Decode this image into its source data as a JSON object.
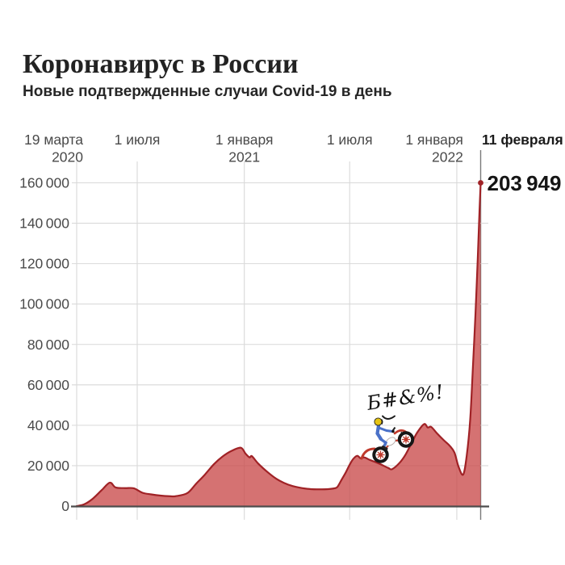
{
  "header": {
    "title": "Коронавирус в России",
    "subtitle": "Новые подтвержденные случаи Covid-19 в день"
  },
  "chart_data": {
    "type": "area",
    "title": "Коронавирус в России",
    "subtitle": "Новые подтвержденные случаи Covid-19 в день",
    "grid": true,
    "x_axis": {
      "start_date": "19.03.2020",
      "end_date": "11.02.2022",
      "ticks": [
        {
          "date": "19.03.2020",
          "lines": [
            "19 марта",
            "2020"
          ],
          "align": "end",
          "bold": false,
          "end_marker": false
        },
        {
          "date": "01.07.2020",
          "lines": [
            "1 июля"
          ],
          "align": "middle",
          "bold": false,
          "end_marker": false
        },
        {
          "date": "01.01.2021",
          "lines": [
            "1 января",
            "2021"
          ],
          "align": "middle",
          "bold": false,
          "end_marker": false
        },
        {
          "date": "01.07.2021",
          "lines": [
            "1 июля"
          ],
          "align": "middle",
          "bold": false,
          "end_marker": false
        },
        {
          "date": "01.01.2022",
          "lines": [
            "1 января",
            "2022"
          ],
          "align": "end",
          "bold": false,
          "end_marker": false
        },
        {
          "date": "11.02.2022",
          "lines": [
            "11 февраля"
          ],
          "align": "start",
          "bold": true,
          "end_marker": true
        }
      ]
    },
    "y_axis": {
      "min": 0,
      "max": 160000,
      "tick_step": 20000,
      "ticks": [
        {
          "value": 0,
          "label": "0"
        },
        {
          "value": 20000,
          "label": "20 000"
        },
        {
          "value": 40000,
          "label": "40 000"
        },
        {
          "value": 60000,
          "label": "60 000"
        },
        {
          "value": 80000,
          "label": "80 000"
        },
        {
          "value": 100000,
          "label": "100 000"
        },
        {
          "value": 120000,
          "label": "120 000"
        },
        {
          "value": 140000,
          "label": "140 000"
        },
        {
          "value": 160000,
          "label": "160 000"
        }
      ]
    },
    "series": [
      {
        "name": "Новые подтвержденные случаи Covid-19 в день",
        "points": [
          [
            "19.03.2020",
            0
          ],
          [
            "01.04.2020",
            900
          ],
          [
            "15.04.2020",
            3500
          ],
          [
            "01.05.2020",
            7900
          ],
          [
            "15.05.2020",
            11600
          ],
          [
            "25.05.2020",
            9200
          ],
          [
            "10.06.2020",
            8900
          ],
          [
            "25.06.2020",
            8800
          ],
          [
            "10.07.2020",
            6600
          ],
          [
            "25.07.2020",
            5800
          ],
          [
            "10.08.2020",
            5200
          ],
          [
            "25.08.2020",
            4900
          ],
          [
            "05.09.2020",
            4900
          ],
          [
            "25.09.2020",
            6400
          ],
          [
            "10.10.2020",
            11000
          ],
          [
            "25.10.2020",
            15500
          ],
          [
            "10.11.2020",
            20800
          ],
          [
            "25.11.2020",
            24600
          ],
          [
            "10.12.2020",
            27300
          ],
          [
            "26.12.2020",
            28900
          ],
          [
            "03.01.2021",
            26000
          ],
          [
            "10.01.2021",
            24100
          ],
          [
            "14.01.2021",
            24700
          ],
          [
            "25.01.2021",
            21000
          ],
          [
            "10.02.2021",
            16800
          ],
          [
            "25.02.2021",
            13500
          ],
          [
            "10.03.2021",
            11500
          ],
          [
            "25.03.2021",
            9900
          ],
          [
            "10.04.2021",
            8900
          ],
          [
            "25.04.2021",
            8400
          ],
          [
            "10.05.2021",
            8300
          ],
          [
            "25.05.2021",
            8400
          ],
          [
            "05.06.2021",
            8800
          ],
          [
            "10.06.2021",
            9500
          ],
          [
            "17.06.2021",
            13000
          ],
          [
            "24.06.2021",
            16500
          ],
          [
            "01.07.2021",
            20500
          ],
          [
            "07.07.2021",
            23300
          ],
          [
            "14.07.2021",
            24900
          ],
          [
            "20.07.2021",
            23600
          ],
          [
            "26.07.2021",
            24100
          ],
          [
            "05.08.2021",
            22800
          ],
          [
            "20.08.2021",
            21100
          ],
          [
            "05.09.2021",
            18900
          ],
          [
            "12.09.2021",
            18300
          ],
          [
            "25.09.2021",
            21500
          ],
          [
            "05.10.2021",
            25500
          ],
          [
            "15.10.2021",
            31000
          ],
          [
            "25.10.2021",
            36400
          ],
          [
            "06.11.2021",
            40600
          ],
          [
            "12.11.2021",
            38900
          ],
          [
            "18.11.2021",
            39200
          ],
          [
            "28.11.2021",
            36000
          ],
          [
            "10.12.2021",
            32500
          ],
          [
            "20.12.2021",
            29800
          ],
          [
            "28.12.2021",
            26500
          ],
          [
            "04.01.2022",
            19500
          ],
          [
            "12.01.2022",
            15600
          ],
          [
            "18.01.2022",
            24800
          ],
          [
            "24.01.2022",
            42700
          ],
          [
            "29.01.2022",
            70600
          ],
          [
            "02.02.2022",
            94500
          ],
          [
            "06.02.2022",
            122500
          ],
          [
            "09.02.2022",
            146000
          ],
          [
            "11.02.2022",
            203949
          ]
        ]
      }
    ],
    "last_point": {
      "date": "11.02.2022",
      "value": 203949,
      "label": "203 949",
      "clipped_at_axis_max": true
    },
    "annotations": {
      "rider_exclamation": "Б#&%!",
      "sticker": "motocross-rider-climbing-wave"
    },
    "colors": {
      "area_fill": "#c94a4a",
      "area_fill_opacity": 0.78,
      "area_stroke": "#a02226",
      "end_dot": "#a02226",
      "grid": "#d9d9d9",
      "axis": "#4d4d4d",
      "end_line": "#7a7a7a",
      "tick_text": "#4a4a4a",
      "dark_text": "#1a1a1a",
      "helmet": "#e6c412",
      "rider_suit": "#4a71c8",
      "bike_red": "#c0392b",
      "wheel": "#161616"
    }
  }
}
